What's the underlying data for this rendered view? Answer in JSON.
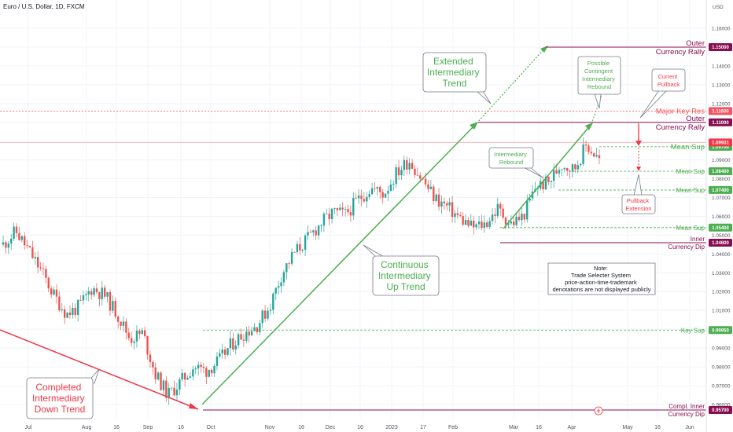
{
  "header": {
    "title": "Euro / U.S. Dollar, 1D, FXCM",
    "currency": "USD"
  },
  "colors": {
    "up": "#26a69a",
    "down": "#ef5350",
    "green": "#4caf50",
    "red": "#f23645",
    "purple": "#880e4f",
    "res": "#f7525f",
    "grid": "#f0f3fa"
  },
  "chart_data": {
    "type": "candlestick",
    "title": "Euro / U.S. Dollar, 1D, FXCM",
    "ylim": [
      0.953,
      1.163
    ],
    "y_ticks": [
      "1.16000",
      "1.15000",
      "1.14000",
      "1.13000",
      "1.12000",
      "1.11000",
      "1.10000",
      "1.09000",
      "1.08000",
      "1.07000",
      "1.06000",
      "1.05000",
      "1.04000",
      "1.03000",
      "1.02000",
      "1.01000",
      "1.00000",
      "0.99000",
      "0.98000",
      "0.97000",
      "0.96000"
    ],
    "x_ticks": [
      "Jul",
      "Aug",
      "16",
      "Sep",
      "16",
      "Oct",
      "Nov",
      "16",
      "Dec",
      "16",
      "2023",
      "17",
      "Feb",
      "Mar",
      "16",
      "Apr",
      "May",
      "16",
      "Jun"
    ],
    "price_path": [
      1.045,
      1.052,
      1.042,
      1.031,
      1.018,
      1.008,
      1.012,
      1.022,
      1.018,
      1.008,
      0.995,
      0.998,
      0.976,
      0.965,
      0.972,
      0.98,
      0.978,
      0.983,
      0.992,
      0.998,
      1.002,
      1.012,
      1.03,
      1.041,
      1.048,
      1.056,
      1.062,
      1.061,
      1.069,
      1.075,
      1.072,
      1.083,
      1.09,
      1.08,
      1.07,
      1.065,
      1.059,
      1.054,
      1.056,
      1.064,
      1.056,
      1.06,
      1.076,
      1.078,
      1.088,
      1.085,
      1.098,
      1.09
    ],
    "levels": [
      {
        "label": "Outer",
        "label2": "Currency Rally",
        "price": 1.15,
        "tag": "1.15000"
      },
      {
        "label": "Major Key Res",
        "price": 1.116,
        "tag": "1.11600"
      },
      {
        "label": "Outer",
        "label2": "Currency Rally",
        "price": 1.11,
        "tag": "1.11000"
      },
      {
        "label": "Mean Sup",
        "price": 1.097,
        "tag": "1.09700"
      },
      {
        "label": "Mean Sup",
        "price": 1.084,
        "tag": "1.08400"
      },
      {
        "label": "Mean Sup",
        "price": 1.074,
        "tag": "1.07400"
      },
      {
        "label": "Mean Sup",
        "price": 1.054,
        "tag": "1.05400"
      },
      {
        "label": "Inner",
        "label2": "Currency Dip",
        "price": 1.046,
        "tag": "1.04600"
      },
      {
        "label": "Key Sup",
        "price": 0.9995,
        "tag": "0.99950"
      },
      {
        "label": "Compl. Inner",
        "label2": "Currency Dip",
        "price": 0.957,
        "tag": "0.95700"
      }
    ],
    "current_price_tag": "1.09931",
    "annotations": {
      "completed": [
        "Completed",
        "Intermediary",
        "Down Trend"
      ],
      "continuous": [
        "Continuous",
        "Intermediary",
        "Up Trend"
      ],
      "extended": [
        "Extended",
        "Intermediary",
        "Trend"
      ],
      "possible": [
        "Possible",
        "Contingent",
        "Intermediary",
        "Rebound"
      ],
      "rebound": [
        "Intermediary",
        "Rebound"
      ],
      "pullback": [
        "Current",
        "Pullback"
      ],
      "extension": [
        "Pullback",
        "Extension"
      ],
      "note": [
        "Note:",
        "Trade Selecter System",
        "price-action-time-trademark",
        "denotations are not displayed publicly"
      ]
    }
  }
}
